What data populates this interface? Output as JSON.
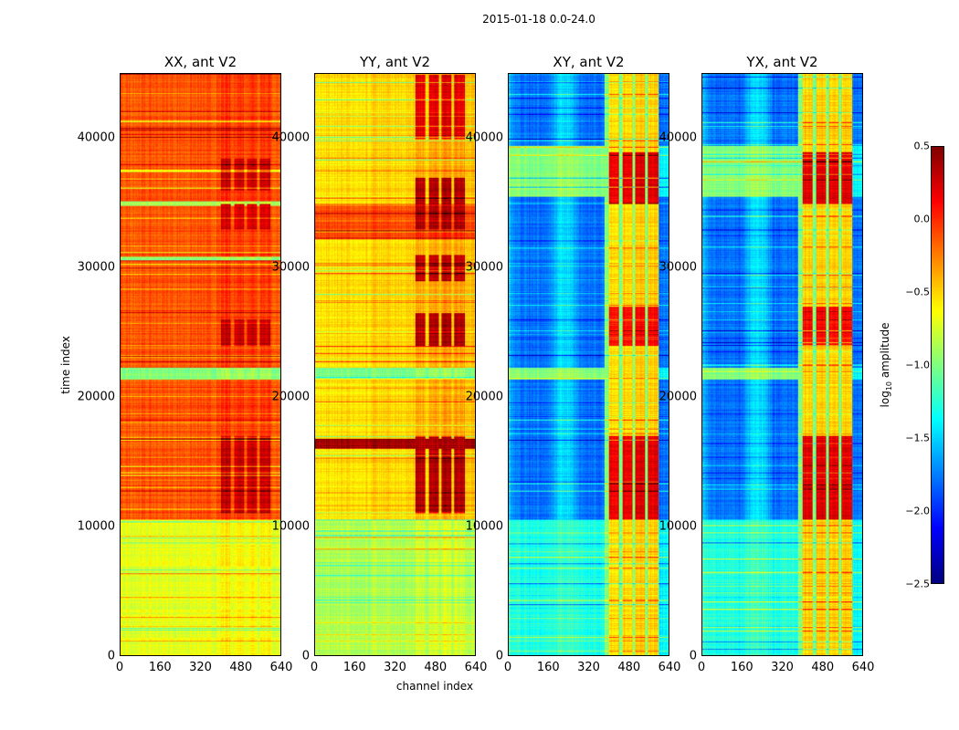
{
  "chart_data": {
    "type": "heatmap",
    "title": "2015-01-18 0.0-24.0",
    "xlabel": "channel index",
    "ylabel": "time index",
    "xlim": [
      0,
      640
    ],
    "ylim": [
      0,
      45000
    ],
    "xticks": [
      "0",
      "160",
      "320",
      "480",
      "640"
    ],
    "yticks": [
      "0",
      "10000",
      "20000",
      "30000",
      "40000"
    ],
    "colorbar": {
      "label": "log10 amplitude",
      "label_base": "log",
      "label_sub": "10",
      "label_rest": " amplitude",
      "colormap": "jet",
      "range": [
        -2.5,
        0.5
      ],
      "ticks": [
        "0.5",
        "0.0",
        "−0.5",
        "−1.0",
        "−1.5",
        "−2.0",
        "−2.5"
      ]
    },
    "panels": [
      {
        "title": "XX, ant V2",
        "kind": "auto",
        "base": -0.12,
        "left_offset": 0.0,
        "bands": [
          [
            0,
            10500,
            -0.7
          ],
          [
            21400,
            22300,
            -1.0
          ],
          [
            34800,
            35200,
            -0.9
          ],
          [
            30600,
            30900,
            -1.0
          ]
        ],
        "hot_regions": [
          [
            11000,
            17000,
            0.3
          ],
          [
            24000,
            26000,
            0.3
          ],
          [
            33000,
            35000,
            0.25
          ],
          [
            36000,
            38500,
            0.3
          ]
        ]
      },
      {
        "title": "YY, ant V2",
        "kind": "auto",
        "base": -0.45,
        "left_offset": -0.1,
        "bands": [
          [
            0,
            10500,
            -0.85
          ],
          [
            21400,
            22300,
            -1.0
          ],
          [
            32200,
            35000,
            -0.1
          ],
          [
            16000,
            16800,
            0.4
          ]
        ],
        "hot_regions": [
          [
            11000,
            17000,
            0.35
          ],
          [
            24000,
            26500,
            0.35
          ],
          [
            29000,
            31000,
            0.3
          ],
          [
            33000,
            37000,
            0.35
          ],
          [
            40000,
            45000,
            0.2
          ]
        ]
      },
      {
        "title": "XY, ant V2",
        "kind": "cross",
        "base": -1.8,
        "bands": [
          [
            0,
            10500,
            -1.3
          ],
          [
            21400,
            22300,
            -1.0
          ],
          [
            35500,
            39500,
            -1.0
          ]
        ],
        "hot_regions": [
          [
            10500,
            17000,
            0.2
          ],
          [
            24000,
            27000,
            0.1
          ],
          [
            35000,
            39000,
            0.2
          ]
        ]
      },
      {
        "title": "YX, ant V2",
        "kind": "cross",
        "base": -1.8,
        "bands": [
          [
            0,
            10500,
            -1.3
          ],
          [
            21400,
            22300,
            -1.0
          ],
          [
            35500,
            39500,
            -1.0
          ]
        ],
        "hot_regions": [
          [
            10500,
            17000,
            0.2
          ],
          [
            24000,
            27000,
            0.1
          ],
          [
            35000,
            39000,
            0.2
          ]
        ]
      }
    ]
  }
}
